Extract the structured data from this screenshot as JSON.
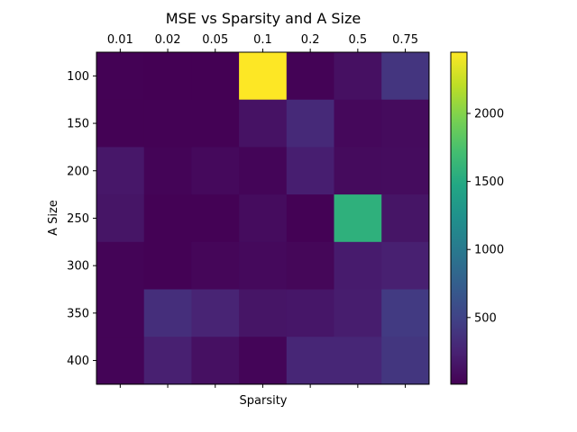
{
  "chart_data": {
    "type": "heatmap",
    "title": "MSE vs Sparsity and A Size",
    "xlabel": "Sparsity",
    "ylabel": "A Size",
    "x_categories": [
      "0.01",
      "0.02",
      "0.05",
      "0.1",
      "0.2",
      "0.5",
      "0.75"
    ],
    "y_categories": [
      "100",
      "150",
      "200",
      "250",
      "300",
      "350",
      "400"
    ],
    "values": [
      [
        15,
        10,
        12,
        2450,
        25,
        120,
        390
      ],
      [
        20,
        15,
        18,
        130,
        300,
        60,
        80
      ],
      [
        170,
        30,
        70,
        40,
        220,
        80,
        90
      ],
      [
        150,
        20,
        15,
        90,
        15,
        1570,
        150
      ],
      [
        35,
        20,
        45,
        70,
        50,
        200,
        230
      ],
      [
        30,
        340,
        260,
        150,
        160,
        210,
        430
      ],
      [
        30,
        230,
        120,
        40,
        280,
        280,
        400
      ]
    ],
    "vmin": 10,
    "vmax": 2450,
    "colormap": "viridis",
    "colorbar_ticks": [
      "500",
      "1000",
      "1500",
      "2000"
    ],
    "colorbar_tick_values": [
      500,
      1000,
      1500,
      2000
    ],
    "grid": false
  }
}
